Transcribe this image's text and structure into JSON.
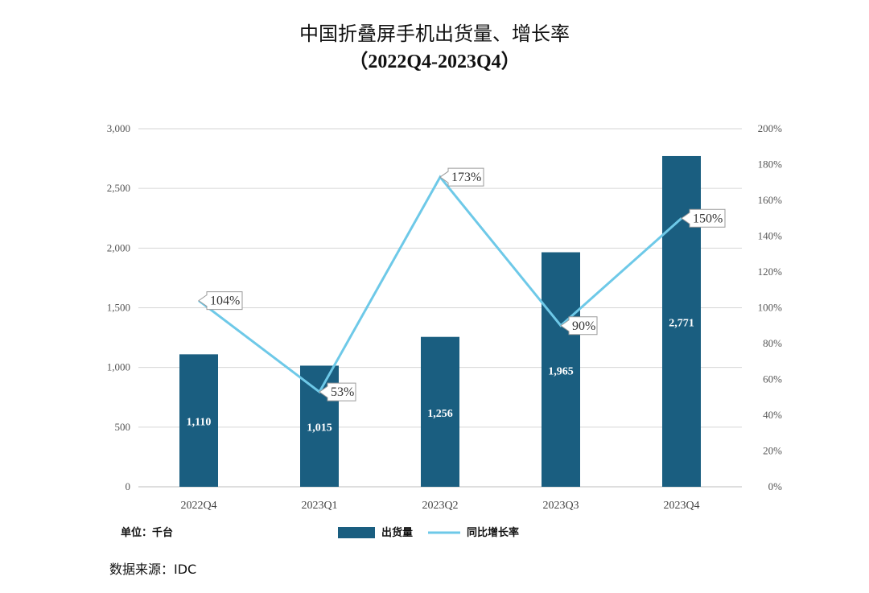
{
  "chart_data": {
    "type": "bar",
    "title": "中国折叠屏手机出货量、增长率",
    "subtitle": "（2022Q4-2023Q4）",
    "categories": [
      "2022Q4",
      "2023Q1",
      "2023Q2",
      "2023Q3",
      "2023Q4"
    ],
    "series": [
      {
        "name": "出货量",
        "type": "bar",
        "axis": "left",
        "color": "#1a5e80",
        "values": [
          1110,
          1015,
          1256,
          1965,
          2771
        ],
        "labels": [
          "1,110",
          "1,015",
          "1,256",
          "1,965",
          "2,771"
        ]
      },
      {
        "name": "同比增长率",
        "type": "line",
        "axis": "right",
        "color": "#6ec9e8",
        "values": [
          104,
          53,
          173,
          90,
          150
        ],
        "labels": [
          "104%",
          "53%",
          "173%",
          "90%",
          "150%"
        ]
      }
    ],
    "ylim_left": [
      0,
      3000
    ],
    "yticks_left": [
      "0",
      "500",
      "1,000",
      "1,500",
      "2,000",
      "2,500",
      "3,000"
    ],
    "ylim_right": [
      0,
      200
    ],
    "yticks_right": [
      "0%",
      "20%",
      "40%",
      "60%",
      "80%",
      "100%",
      "120%",
      "140%",
      "160%",
      "180%",
      "200%"
    ],
    "grid": true,
    "legend_position": "bottom",
    "unit_note": "单位：千台",
    "source_note": "数据来源：IDC"
  }
}
